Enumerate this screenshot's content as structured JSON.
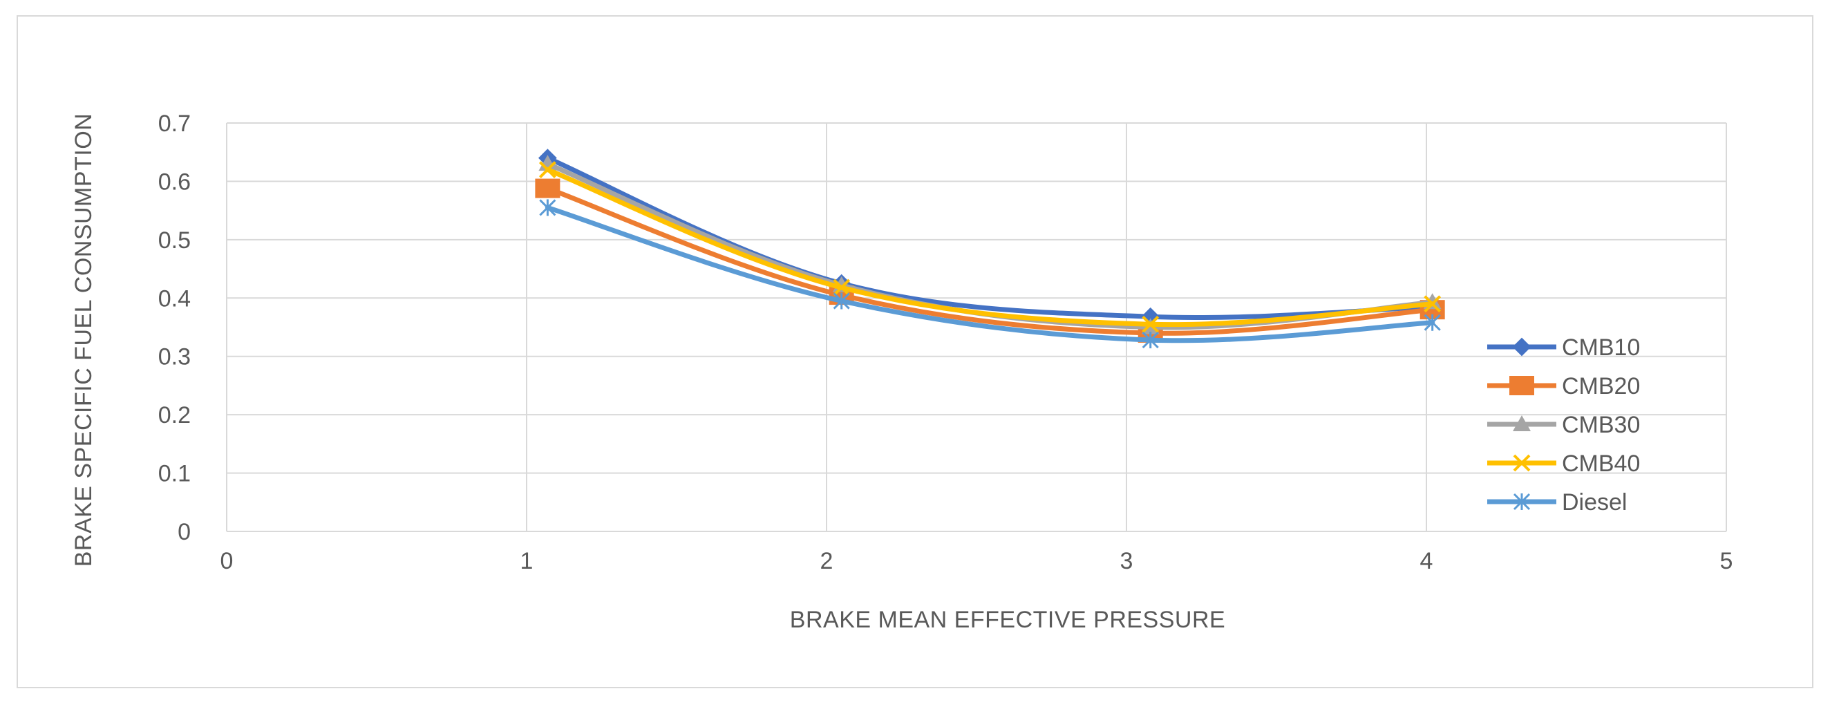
{
  "chart_data": {
    "type": "line",
    "title": "",
    "xlabel": "BRAKE MEAN EFFECTIVE PRESSURE",
    "ylabel": "BRAKE SPECIFIC FUEL CONSUMPTION",
    "xlim": [
      0,
      5
    ],
    "ylim": [
      0,
      0.7
    ],
    "x_ticks": [
      0,
      1,
      2,
      3,
      4,
      5
    ],
    "y_ticks": [
      0,
      0.1,
      0.2,
      0.3,
      0.4,
      0.5,
      0.6,
      0.7
    ],
    "x_tick_labels": [
      "0",
      "1",
      "2",
      "3",
      "4",
      "5"
    ],
    "y_tick_labels": [
      "0",
      "0.1",
      "0.2",
      "0.3",
      "0.4",
      "0.5",
      "0.6",
      "0.7"
    ],
    "grid": true,
    "legend_position": "right",
    "series": [
      {
        "name": "CMB10",
        "color": "#4472c4",
        "marker": "diamond",
        "x": [
          1.07,
          2.05,
          3.08,
          4.02
        ],
        "y": [
          0.64,
          0.425,
          0.368,
          0.385
        ]
      },
      {
        "name": "CMB20",
        "color": "#ed7d31",
        "marker": "square",
        "x": [
          1.07,
          2.05,
          3.08,
          4.02
        ],
        "y": [
          0.588,
          0.405,
          0.34,
          0.38
        ]
      },
      {
        "name": "CMB30",
        "color": "#a5a5a5",
        "marker": "triangle",
        "x": [
          1.07,
          2.05,
          3.08,
          4.02
        ],
        "y": [
          0.63,
          0.422,
          0.35,
          0.393
        ]
      },
      {
        "name": "CMB40",
        "color": "#ffc000",
        "marker": "x",
        "x": [
          1.07,
          2.05,
          3.08,
          4.02
        ],
        "y": [
          0.62,
          0.418,
          0.355,
          0.39
        ]
      },
      {
        "name": "Diesel",
        "color": "#5b9bd5",
        "marker": "star",
        "x": [
          1.07,
          2.05,
          3.08,
          4.02
        ],
        "y": [
          0.555,
          0.395,
          0.328,
          0.358
        ]
      }
    ]
  }
}
